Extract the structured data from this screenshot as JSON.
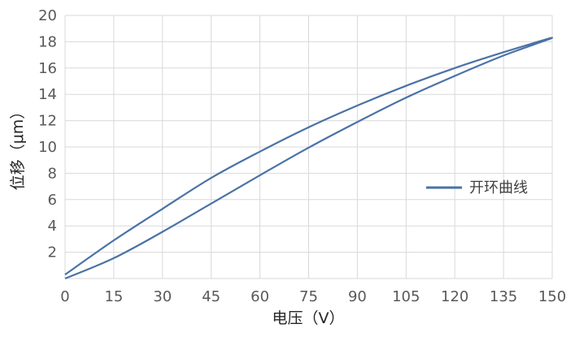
{
  "chart_data": {
    "type": "line",
    "title": "",
    "xlabel": "电压（V）",
    "ylabel": "位移（μm）",
    "xlim": [
      0,
      150
    ],
    "ylim": [
      0,
      20
    ],
    "xticks": [
      0,
      15,
      30,
      45,
      60,
      75,
      90,
      105,
      120,
      135,
      150
    ],
    "yticks": [
      2,
      4,
      6,
      8,
      10,
      12,
      14,
      16,
      18,
      20
    ],
    "grid": true,
    "legend_position": "right",
    "series": [
      {
        "name": "开环曲线",
        "color": "#4a72a6",
        "x": [
          0,
          15,
          30,
          45,
          60,
          75,
          90,
          105,
          120,
          135,
          150,
          135,
          120,
          105,
          90,
          75,
          60,
          45,
          30,
          15,
          0
        ],
        "values": [
          0.0,
          1.55,
          3.55,
          5.7,
          7.85,
          9.95,
          11.9,
          13.75,
          15.4,
          16.95,
          18.3,
          17.2,
          16.0,
          14.65,
          13.15,
          11.5,
          9.65,
          7.65,
          5.3,
          2.9,
          0.3
        ]
      }
    ]
  }
}
